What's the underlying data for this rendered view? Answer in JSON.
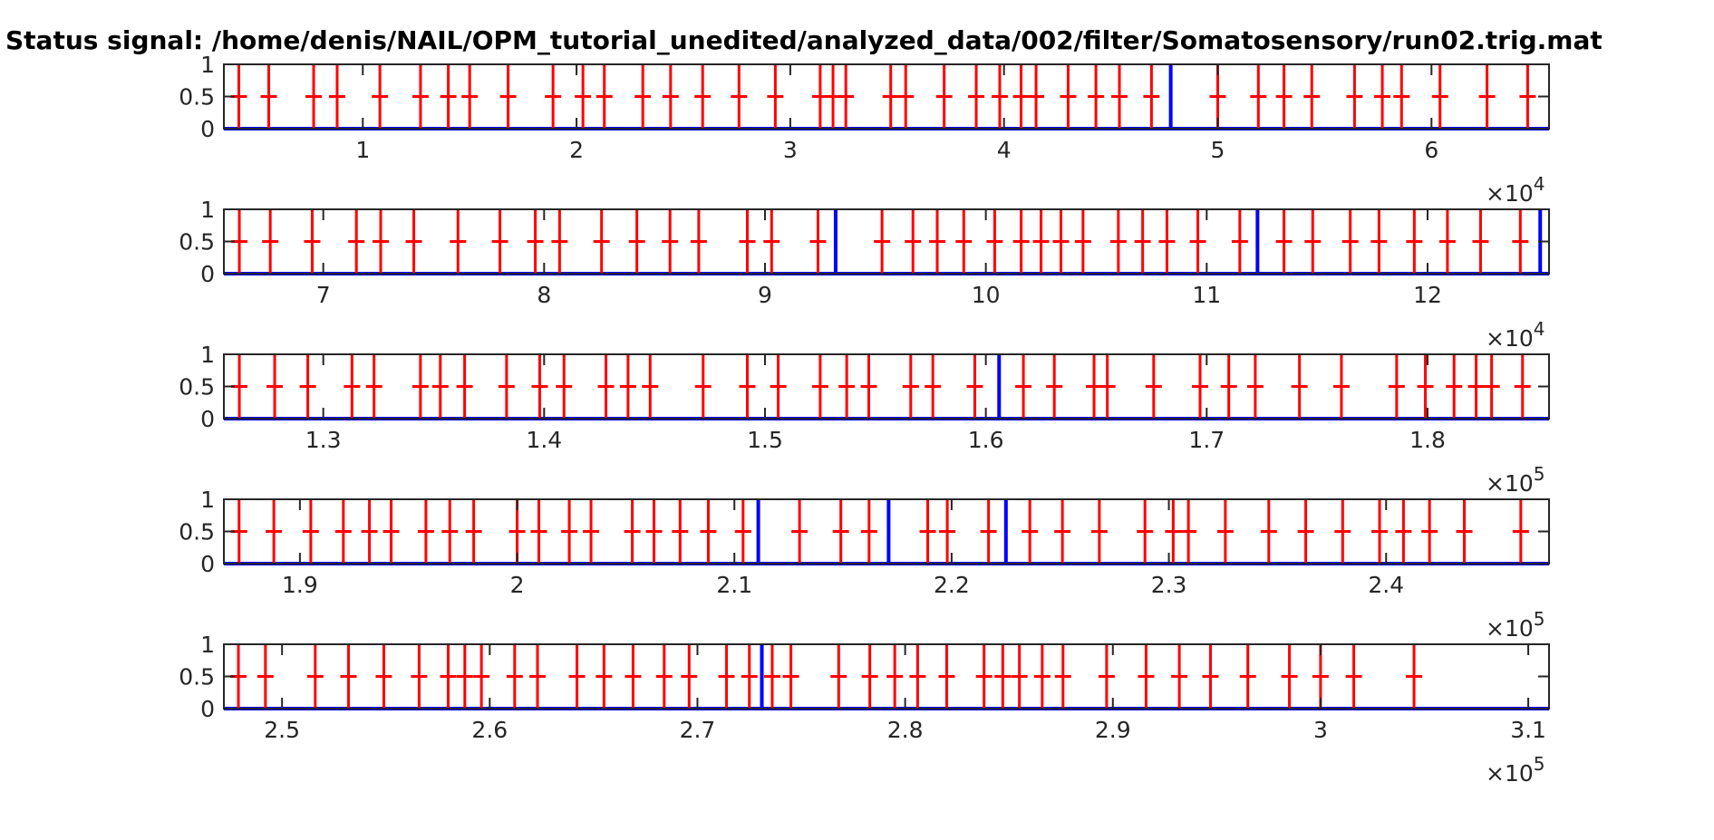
{
  "title": "Status signal: /home/denis/NAIL/OPM_tutorial_unedited/analyzed_data/002/filter/Somatosensory/run02.trig.mat",
  "colors": {
    "signal": "#0000ff",
    "trigger": "#ff0000",
    "axis": "#262626",
    "background": "#ffffff"
  },
  "chart_data": [
    {
      "type": "line",
      "panel": 1,
      "xlim": [
        3500,
        65500
      ],
      "ylim": [
        0,
        1
      ],
      "xticks": [
        10000,
        20000,
        30000,
        40000,
        50000,
        60000
      ],
      "xtick_labels": [
        "1",
        "2",
        "3",
        "4",
        "5",
        "6"
      ],
      "yticks": [
        0,
        0.5,
        1
      ],
      "ytick_labels": [
        "0",
        "0.5",
        "1"
      ],
      "exponent_label": "×10^4",
      "grid": "off",
      "blue_spikes": [
        4200,
        5600,
        7700,
        8800,
        10800,
        12700,
        14000,
        15000,
        16800,
        18900,
        20300,
        21300,
        23100,
        24400,
        25900,
        27600,
        29300,
        31400,
        32000,
        32600,
        34700,
        35400,
        37200,
        38700,
        39800,
        40800,
        41500,
        43000,
        44300,
        45400,
        46900,
        47800,
        50000,
        51900,
        53100,
        54400,
        56400,
        57700,
        58600,
        60400,
        62600,
        64500
      ],
      "red_triggers": [
        4200,
        5600,
        7700,
        8800,
        10800,
        12700,
        14000,
        15000,
        16800,
        18900,
        20300,
        21300,
        23100,
        24400,
        25900,
        27600,
        29300,
        31400,
        32000,
        32600,
        34700,
        35400,
        37200,
        38700,
        39800,
        40800,
        41500,
        43000,
        44300,
        45400,
        46900,
        50000,
        51900,
        53100,
        54400,
        56400,
        57700,
        58600,
        60400,
        62600,
        64500
      ],
      "wide_blue": [
        47800
      ]
    },
    {
      "type": "line",
      "panel": 2,
      "xlim": [
        65500,
        125500
      ],
      "ylim": [
        0,
        1
      ],
      "xticks": [
        70000,
        80000,
        90000,
        100000,
        110000,
        120000
      ],
      "xtick_labels": [
        "7",
        "8",
        "9",
        "10",
        "11",
        "12"
      ],
      "yticks": [
        0,
        0.5,
        1
      ],
      "ytick_labels": [
        "0",
        "0.5",
        "1"
      ],
      "exponent_label": "×10^4",
      "grid": "off",
      "blue_spikes": [
        66200,
        67600,
        69500,
        71500,
        72600,
        74100,
        76100,
        78000,
        79600,
        80700,
        82600,
        84200,
        85700,
        87000,
        89200,
        90300,
        92400,
        93200,
        95300,
        96700,
        97800,
        99000,
        100400,
        101600,
        102500,
        103400,
        104400,
        106000,
        107100,
        108200,
        109600,
        111500,
        112300,
        113500,
        114800,
        116500,
        117800,
        119400,
        120900,
        122400,
        124200,
        125100
      ],
      "red_triggers": [
        66200,
        67600,
        69500,
        71500,
        72600,
        74100,
        76100,
        78000,
        79600,
        80700,
        82600,
        84200,
        85700,
        87000,
        89200,
        90300,
        92400,
        95300,
        96700,
        97800,
        99000,
        100400,
        101600,
        102500,
        103400,
        104400,
        106000,
        107100,
        108200,
        109600,
        111500,
        113500,
        114800,
        116500,
        117800,
        119400,
        120900,
        122400,
        124200
      ],
      "wide_blue": [
        93200,
        112300,
        125100
      ]
    },
    {
      "type": "line",
      "panel": 3,
      "xlim": [
        125500,
        185500
      ],
      "ylim": [
        0,
        1
      ],
      "xticks": [
        130000,
        140000,
        150000,
        160000,
        170000,
        180000
      ],
      "xtick_labels": [
        "1.3",
        "1.4",
        "1.5",
        "1.6",
        "1.7",
        "1.8"
      ],
      "yticks": [
        0,
        0.5,
        1
      ],
      "ytick_labels": [
        "0",
        "0.5",
        "1"
      ],
      "exponent_label": "×10^5",
      "grid": "off",
      "blue_spikes": [
        126200,
        127800,
        129300,
        131300,
        132300,
        134400,
        135300,
        136400,
        138300,
        139800,
        140900,
        142800,
        143800,
        144800,
        147200,
        149200,
        150600,
        152500,
        153700,
        154700,
        156600,
        157600,
        159500,
        160600,
        161700,
        163100,
        164900,
        165500,
        167600,
        169700,
        171000,
        172200,
        174200,
        176100,
        178600,
        179900,
        181200,
        182200,
        182900,
        184300
      ],
      "red_triggers": [
        126200,
        127800,
        129300,
        131300,
        132300,
        134400,
        135300,
        136400,
        138300,
        139800,
        140900,
        142800,
        143800,
        144800,
        147200,
        149200,
        150600,
        152500,
        153700,
        154700,
        156600,
        157600,
        159500,
        161700,
        163100,
        164900,
        165500,
        167600,
        169700,
        171000,
        172200,
        174200,
        176100,
        178600,
        179900,
        181200,
        182200,
        182900,
        184300
      ],
      "wide_blue": [
        160600
      ]
    },
    {
      "type": "line",
      "panel": 4,
      "xlim": [
        186500,
        247500
      ],
      "ylim": [
        0,
        1
      ],
      "xticks": [
        190000,
        200000,
        210000,
        220000,
        230000,
        240000
      ],
      "xtick_labels": [
        "1.9",
        "2",
        "2.1",
        "2.2",
        "2.3",
        "2.4"
      ],
      "yticks": [
        0,
        0.5,
        1
      ],
      "ytick_labels": [
        "0",
        "0.5",
        "1"
      ],
      "exponent_label": "×10^5",
      "grid": "off",
      "blue_spikes": [
        187200,
        188800,
        190500,
        192000,
        193200,
        194200,
        195800,
        196900,
        198000,
        200000,
        201000,
        202400,
        203400,
        205300,
        206300,
        207500,
        208800,
        210400,
        211100,
        213000,
        214900,
        216200,
        217100,
        218900,
        219800,
        221700,
        222500,
        223600,
        225100,
        226800,
        228900,
        230200,
        230900,
        232600,
        234600,
        236300,
        238000,
        239700,
        240800,
        242000,
        243600,
        246200
      ],
      "red_triggers": [
        187200,
        188800,
        190500,
        192000,
        193200,
        194200,
        195800,
        196900,
        198000,
        200000,
        201000,
        202400,
        203400,
        205300,
        206300,
        207500,
        208800,
        210400,
        213000,
        214900,
        216200,
        218900,
        219800,
        221700,
        223600,
        225100,
        226800,
        228900,
        230200,
        230900,
        232600,
        234600,
        236300,
        238000,
        239700,
        240800,
        242000,
        243600,
        246200
      ],
      "wide_blue": [
        211100,
        217100,
        222500
      ]
    },
    {
      "type": "line",
      "panel": 5,
      "xlim": [
        247200,
        311000
      ],
      "ylim": [
        0,
        1
      ],
      "xticks": [
        250000,
        260000,
        270000,
        280000,
        290000,
        300000,
        310000
      ],
      "xtick_labels": [
        "2.5",
        "2.6",
        "2.7",
        "2.8",
        "2.9",
        "3",
        "3.1"
      ],
      "yticks": [
        0,
        0.5,
        1
      ],
      "ytick_labels": [
        "0",
        "0.5",
        "1"
      ],
      "exponent_label": "×10^5",
      "grid": "off",
      "blue_spikes": [
        247900,
        249200,
        251600,
        253200,
        254900,
        256600,
        258000,
        258800,
        259600,
        261200,
        262300,
        264200,
        265500,
        266900,
        268400,
        269600,
        271400,
        272500,
        273100,
        273600,
        274500,
        276800,
        278300,
        279500,
        280600,
        282000,
        283800,
        284700,
        285500,
        286600,
        287600,
        289700,
        291600,
        293200,
        294700,
        296500,
        298500,
        300000,
        301600,
        304500
      ],
      "red_triggers": [
        247900,
        249200,
        251600,
        253200,
        254900,
        256600,
        258000,
        258800,
        259600,
        261200,
        262300,
        264200,
        265500,
        266900,
        268400,
        269600,
        271400,
        272500,
        273600,
        274500,
        276800,
        278300,
        279500,
        280600,
        282000,
        283800,
        284700,
        285500,
        286600,
        287600,
        289700,
        291600,
        293200,
        294700,
        296500,
        298500,
        300000,
        301600,
        304500
      ],
      "wide_blue": [
        273100
      ]
    }
  ]
}
